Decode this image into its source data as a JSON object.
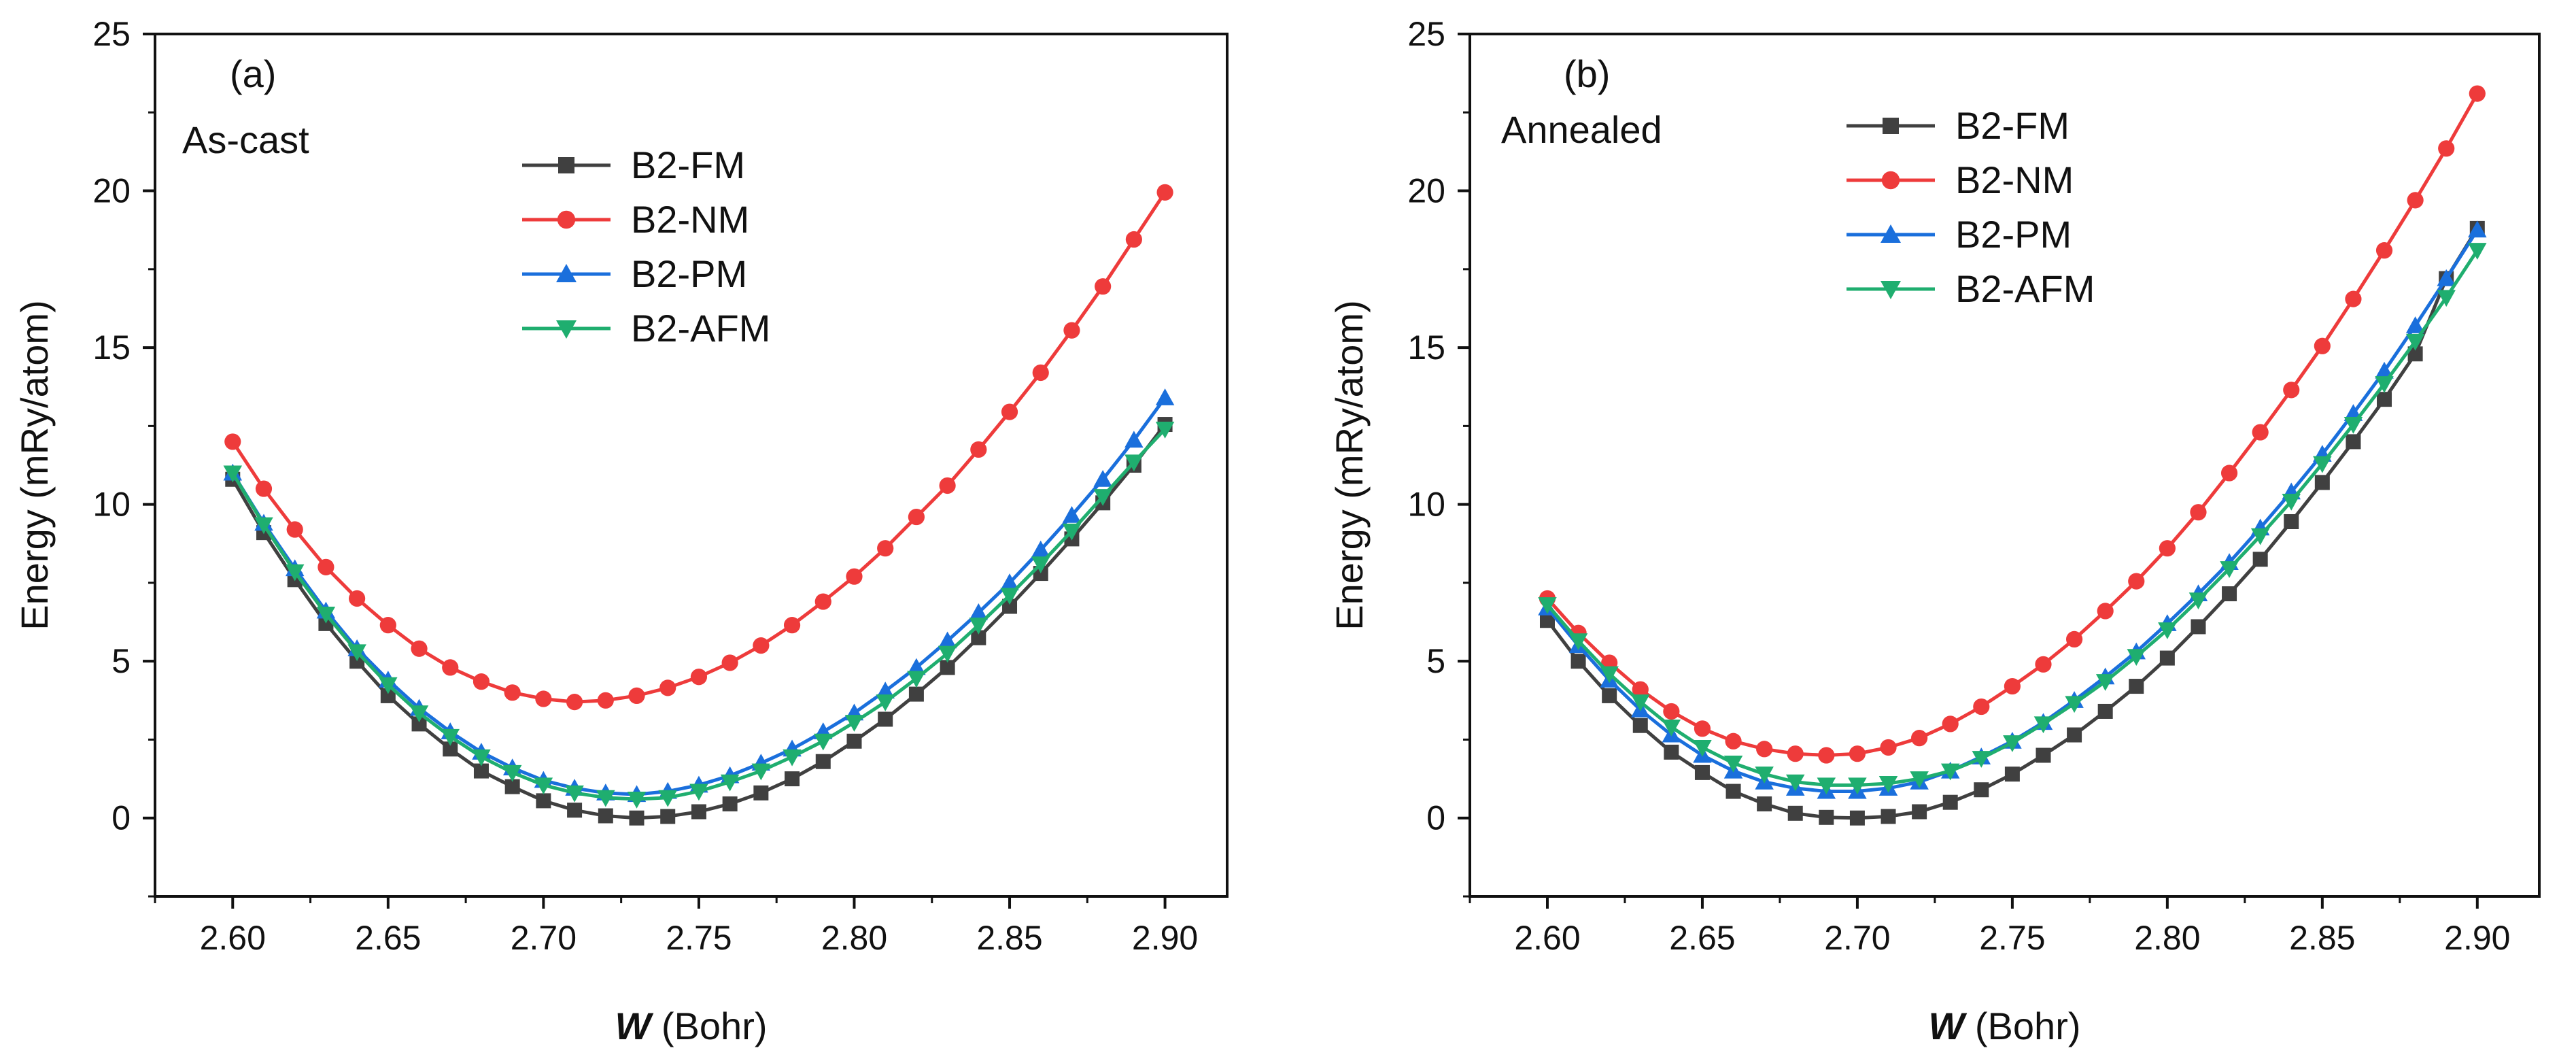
{
  "chart_data": [
    {
      "type": "line",
      "panel_label": "(a)",
      "condition": "As-cast",
      "xlabel_symbol": "W",
      "xlabel_unit": "(Bohr)",
      "ylabel": "Energy (mRy/atom)",
      "xlim": [
        2.575,
        2.92
      ],
      "ylim": [
        -2.5,
        25
      ],
      "xticks": [
        2.6,
        2.65,
        2.7,
        2.75,
        2.8,
        2.85,
        2.9
      ],
      "xtick_labels": [
        "2.60",
        "2.65",
        "2.70",
        "2.75",
        "2.80",
        "2.85",
        "2.90"
      ],
      "yticks": [
        0,
        5,
        10,
        15,
        20,
        25
      ],
      "ytick_labels": [
        "0",
        "5",
        "10",
        "15",
        "20",
        "25"
      ],
      "legend_position": "top-center",
      "x": [
        2.6,
        2.61,
        2.62,
        2.63,
        2.64,
        2.65,
        2.66,
        2.67,
        2.68,
        2.69,
        2.7,
        2.71,
        2.72,
        2.73,
        2.74,
        2.75,
        2.76,
        2.77,
        2.78,
        2.79,
        2.8,
        2.81,
        2.82,
        2.83,
        2.84,
        2.85,
        2.86,
        2.87,
        2.88,
        2.89,
        2.9
      ],
      "series": [
        {
          "name": "B2-FM",
          "color": "#404040",
          "marker": "square",
          "values": [
            10.8,
            9.1,
            7.6,
            6.2,
            5.0,
            3.9,
            3.0,
            2.2,
            1.5,
            1.0,
            0.55,
            0.25,
            0.07,
            0.0,
            0.05,
            0.2,
            0.45,
            0.8,
            1.25,
            1.8,
            2.45,
            3.15,
            3.95,
            4.8,
            5.75,
            6.75,
            7.8,
            8.9,
            10.05,
            11.25,
            12.55
          ]
        },
        {
          "name": "B2-NM",
          "color": "#ee3b3b",
          "marker": "circle",
          "values": [
            12.0,
            10.5,
            9.2,
            8.0,
            7.0,
            6.15,
            5.4,
            4.8,
            4.35,
            4.0,
            3.8,
            3.7,
            3.75,
            3.9,
            4.15,
            4.5,
            4.95,
            5.5,
            6.15,
            6.9,
            7.7,
            8.6,
            9.6,
            10.6,
            11.75,
            12.95,
            14.2,
            15.55,
            16.95,
            18.45,
            19.95
          ]
        },
        {
          "name": "B2-PM",
          "color": "#1a6fdc",
          "marker": "triangle-up",
          "values": [
            11.0,
            9.4,
            7.95,
            6.6,
            5.4,
            4.4,
            3.5,
            2.75,
            2.1,
            1.6,
            1.2,
            0.95,
            0.8,
            0.75,
            0.85,
            1.05,
            1.35,
            1.75,
            2.2,
            2.75,
            3.35,
            4.05,
            4.8,
            5.65,
            6.55,
            7.5,
            8.55,
            9.65,
            10.8,
            12.05,
            13.4
          ]
        },
        {
          "name": "B2-AFM",
          "color": "#1fae6f",
          "marker": "triangle-down",
          "values": [
            11.0,
            9.35,
            7.85,
            6.5,
            5.3,
            4.25,
            3.35,
            2.6,
            1.95,
            1.45,
            1.05,
            0.8,
            0.65,
            0.6,
            0.65,
            0.85,
            1.15,
            1.5,
            1.95,
            2.45,
            3.05,
            3.7,
            4.45,
            5.25,
            6.15,
            7.1,
            8.1,
            9.15,
            10.25,
            11.35,
            12.4
          ]
        }
      ]
    },
    {
      "type": "line",
      "panel_label": "(b)",
      "condition": "Annealed",
      "xlabel_symbol": "W",
      "xlabel_unit": "(Bohr)",
      "ylabel": "Energy (mRy/atom)",
      "xlim": [
        2.575,
        2.92
      ],
      "ylim": [
        -2.5,
        25
      ],
      "xticks": [
        2.6,
        2.65,
        2.7,
        2.75,
        2.8,
        2.85,
        2.9
      ],
      "xtick_labels": [
        "2.60",
        "2.65",
        "2.70",
        "2.75",
        "2.80",
        "2.85",
        "2.90"
      ],
      "yticks": [
        0,
        5,
        10,
        15,
        20,
        25
      ],
      "ytick_labels": [
        "0",
        "5",
        "10",
        "15",
        "20",
        "25"
      ],
      "legend_position": "top-center",
      "x": [
        2.6,
        2.61,
        2.62,
        2.63,
        2.64,
        2.65,
        2.66,
        2.67,
        2.68,
        2.69,
        2.7,
        2.71,
        2.72,
        2.73,
        2.74,
        2.75,
        2.76,
        2.77,
        2.78,
        2.79,
        2.8,
        2.81,
        2.82,
        2.83,
        2.84,
        2.85,
        2.86,
        2.87,
        2.88,
        2.89,
        2.9
      ],
      "series": [
        {
          "name": "B2-FM",
          "color": "#404040",
          "marker": "square",
          "values": [
            6.3,
            5.0,
            3.9,
            2.95,
            2.1,
            1.45,
            0.85,
            0.45,
            0.15,
            0.02,
            0.0,
            0.05,
            0.2,
            0.5,
            0.9,
            1.4,
            2.0,
            2.65,
            3.4,
            4.2,
            5.1,
            6.1,
            7.15,
            8.25,
            9.45,
            10.7,
            12.0,
            13.35,
            14.8,
            17.2,
            18.8
          ]
        },
        {
          "name": "B2-NM",
          "color": "#ee3b3b",
          "marker": "circle",
          "values": [
            7.0,
            5.9,
            4.95,
            4.1,
            3.4,
            2.85,
            2.45,
            2.2,
            2.05,
            2.0,
            2.05,
            2.25,
            2.55,
            3.0,
            3.55,
            4.2,
            4.9,
            5.7,
            6.6,
            7.55,
            8.6,
            9.75,
            11.0,
            12.3,
            13.65,
            15.05,
            16.55,
            18.1,
            19.7,
            21.35,
            23.1
          ]
        },
        {
          "name": "B2-PM",
          "color": "#1a6fdc",
          "marker": "triangle-up",
          "values": [
            6.7,
            5.5,
            4.4,
            3.45,
            2.65,
            2.0,
            1.5,
            1.15,
            0.95,
            0.85,
            0.85,
            0.95,
            1.15,
            1.5,
            1.95,
            2.45,
            3.05,
            3.75,
            4.5,
            5.3,
            6.2,
            7.15,
            8.15,
            9.25,
            10.4,
            11.6,
            12.9,
            14.25,
            15.7,
            17.2,
            18.75
          ]
        },
        {
          "name": "B2-AFM",
          "color": "#1fae6f",
          "marker": "triangle-down",
          "values": [
            6.8,
            5.65,
            4.6,
            3.7,
            2.9,
            2.25,
            1.75,
            1.4,
            1.15,
            1.05,
            1.05,
            1.1,
            1.25,
            1.5,
            1.9,
            2.4,
            3.0,
            3.65,
            4.35,
            5.15,
            6.0,
            6.95,
            7.95,
            9.0,
            10.1,
            11.3,
            12.55,
            13.85,
            15.2,
            16.6,
            18.1
          ]
        }
      ]
    }
  ]
}
